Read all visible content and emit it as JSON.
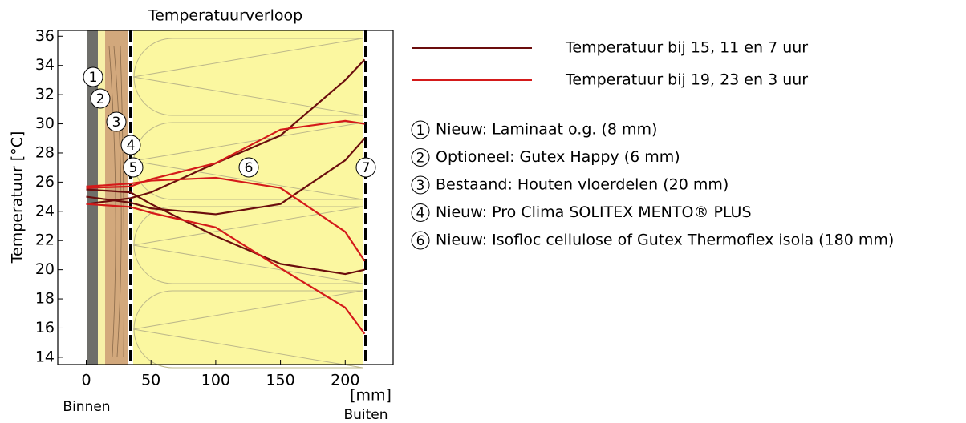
{
  "chart_data": {
    "type": "line",
    "title": "Temperatuurverloop",
    "ylabel": "Temperatuur [°C]",
    "xlabel": "[mm]",
    "x_left_label": "Binnen",
    "x_right_label": "Buiten",
    "x": [
      0,
      34,
      50,
      100,
      150,
      200,
      215
    ],
    "xlim": [
      -22,
      237
    ],
    "ylim": [
      13.5,
      36.4
    ],
    "xticks": [
      0,
      50,
      100,
      150,
      200
    ],
    "yticks": [
      14,
      16,
      18,
      20,
      22,
      24,
      26,
      28,
      30,
      32,
      34,
      36
    ],
    "series": [
      {
        "name": "Temperatuur bij 15, 11 en 7 uur",
        "color": "#6b0d0d",
        "values": [
          24.5,
          24.9,
          25.3,
          27.3,
          29.2,
          33.0,
          34.4
        ]
      },
      {
        "name": null,
        "color": "#6b0d0d",
        "values": [
          25.0,
          24.6,
          24.2,
          23.8,
          24.5,
          27.5,
          29.0
        ]
      },
      {
        "name": null,
        "color": "#6b0d0d",
        "values": [
          25.5,
          25.3,
          24.5,
          22.3,
          20.4,
          19.7,
          20.0
        ]
      },
      {
        "name": "Temperatuur bij 19, 23 en 3 uur",
        "color": "#d41a1a",
        "values": [
          25.6,
          25.7,
          26.2,
          27.3,
          29.6,
          30.2,
          30.0
        ]
      },
      {
        "name": null,
        "color": "#d41a1a",
        "values": [
          25.7,
          25.9,
          26.1,
          26.3,
          25.6,
          22.6,
          20.6
        ]
      },
      {
        "name": null,
        "color": "#d41a1a",
        "values": [
          24.5,
          24.3,
          23.9,
          22.9,
          20.1,
          17.4,
          15.6
        ]
      }
    ],
    "markers": [
      "1",
      "2",
      "3",
      "4",
      "5",
      "6",
      "7"
    ],
    "layer_legend": [
      {
        "number": "1",
        "text": "Nieuw: Laminaat o.g. (8 mm)"
      },
      {
        "number": "2",
        "text": "Optioneel: Gutex Happy (6 mm)"
      },
      {
        "number": "3",
        "text": "Bestaand: Houten vloerdelen (20 mm)"
      },
      {
        "number": "4",
        "text": "Nieuw: Pro Clima SOLITEX MENTO® PLUS"
      },
      {
        "number": "6",
        "text": "Nieuw: Isofloc cellulose of Gutex Thermoflex isola (180 mm)"
      }
    ]
  }
}
